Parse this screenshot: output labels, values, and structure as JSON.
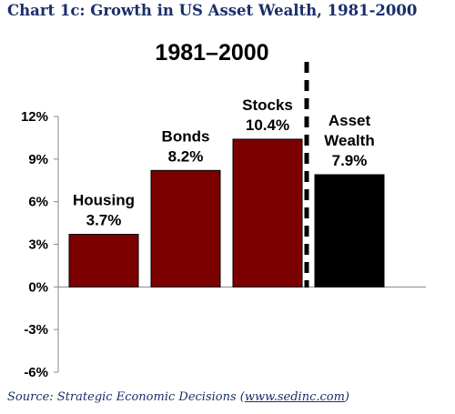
{
  "header": {
    "figure_title": "Chart 1c:  Growth in US Asset Wealth, 1981-2000"
  },
  "footer": {
    "source_prefix": "Source: Strategic Economic Decisions (",
    "source_link": "www.sedinc.com",
    "source_suffix": ")"
  },
  "chart_data": {
    "type": "bar",
    "title": "1981–2000",
    "xlabel": "",
    "ylabel": "",
    "categories": [
      "Housing",
      "Bonds",
      "Stocks",
      "Asset Wealth"
    ],
    "label_lines": [
      [
        "Housing",
        "3.7%"
      ],
      [
        "Bonds",
        "8.2%"
      ],
      [
        "Stocks",
        "10.4%"
      ],
      [
        "Asset",
        "Wealth",
        "7.9%"
      ]
    ],
    "values": [
      3.7,
      8.2,
      10.4,
      7.9
    ],
    "colors": [
      "#7b0000",
      "#7b0000",
      "#7b0000",
      "#000000"
    ],
    "ylim": [
      -6,
      12
    ],
    "yticks": [
      -6,
      -3,
      0,
      3,
      6,
      9,
      12
    ],
    "ytick_labels": [
      "-6%",
      "-3%",
      "0%",
      "3%",
      "6%",
      "9%",
      "12%"
    ],
    "grid": false,
    "legend": "none",
    "separator": "dashed vertical line between Stocks and Asset Wealth"
  }
}
